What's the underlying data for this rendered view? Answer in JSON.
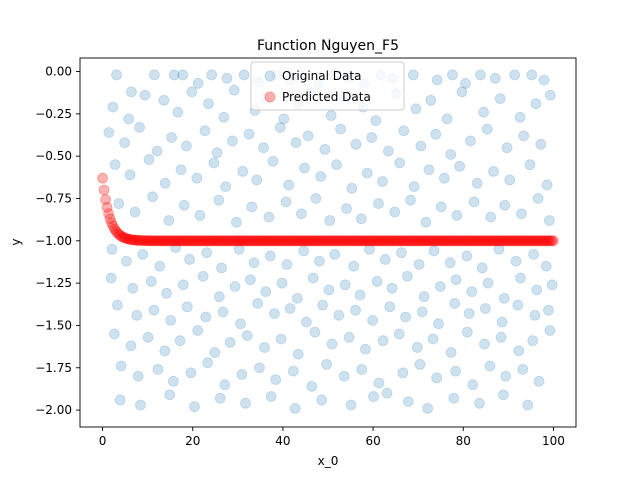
{
  "chart_data": {
    "type": "scatter",
    "title": "Function Nguyen_F5",
    "xlabel": "x_0",
    "ylabel": "y",
    "xlim": [
      -5,
      105
    ],
    "ylim": [
      -2.1,
      0.08
    ],
    "xticks": [
      0,
      20,
      40,
      60,
      80,
      100
    ],
    "xtick_labels": [
      "0",
      "20",
      "40",
      "60",
      "80",
      "100"
    ],
    "yticks": [
      0.0,
      -0.25,
      -0.5,
      -0.75,
      -1.0,
      -1.25,
      -1.5,
      -1.75,
      -2.0
    ],
    "ytick_labels": [
      "0.00",
      "−0.25",
      "−0.50",
      "−0.75",
      "−1.00",
      "−1.25",
      "−1.50",
      "−1.75",
      "−2.00"
    ],
    "grid": false,
    "legend_position": "top-center",
    "series": [
      {
        "name": "Original Data",
        "color": "#1f77b4",
        "alpha": 0.22,
        "points": [
          [
            3.1,
            -0.02
          ],
          [
            6.4,
            -0.12
          ],
          [
            11.5,
            -0.02
          ],
          [
            15.9,
            -0.02
          ],
          [
            17.8,
            -0.02
          ],
          [
            21.2,
            -0.07
          ],
          [
            24.2,
            -0.02
          ],
          [
            27.6,
            -0.04
          ],
          [
            31.4,
            -0.02
          ],
          [
            34.6,
            -0.06
          ],
          [
            38.7,
            -0.02
          ],
          [
            41.8,
            -0.05
          ],
          [
            44.3,
            -0.02
          ],
          [
            47.9,
            -0.07
          ],
          [
            51.2,
            -0.02
          ],
          [
            54.6,
            -0.04
          ],
          [
            58.1,
            -0.07
          ],
          [
            61.7,
            -0.02
          ],
          [
            64.3,
            -0.04
          ],
          [
            68.9,
            -0.02
          ],
          [
            74.2,
            -0.05
          ],
          [
            77.6,
            -0.02
          ],
          [
            80.5,
            -0.07
          ],
          [
            83.8,
            -0.02
          ],
          [
            87.1,
            -0.04
          ],
          [
            91.4,
            -0.02
          ],
          [
            95.2,
            -0.02
          ],
          [
            97.9,
            -0.05
          ],
          [
            2.3,
            -0.21
          ],
          [
            5.8,
            -0.28
          ],
          [
            9.4,
            -0.14
          ],
          [
            13.6,
            -0.17
          ],
          [
            16.7,
            -0.24
          ],
          [
            19.8,
            -0.12
          ],
          [
            23.5,
            -0.19
          ],
          [
            26.9,
            -0.27
          ],
          [
            29.2,
            -0.11
          ],
          [
            33.8,
            -0.23
          ],
          [
            36.4,
            -0.16
          ],
          [
            40.2,
            -0.28
          ],
          [
            43.5,
            -0.19
          ],
          [
            46.1,
            -0.12
          ],
          [
            50.7,
            -0.26
          ],
          [
            53.4,
            -0.15
          ],
          [
            57.8,
            -0.21
          ],
          [
            60.6,
            -0.29
          ],
          [
            65.2,
            -0.13
          ],
          [
            69.5,
            -0.22
          ],
          [
            72.8,
            -0.17
          ],
          [
            76.4,
            -0.28
          ],
          [
            79.7,
            -0.12
          ],
          [
            84.5,
            -0.24
          ],
          [
            88.2,
            -0.16
          ],
          [
            92.6,
            -0.27
          ],
          [
            96.1,
            -0.19
          ],
          [
            99.3,
            -0.14
          ],
          [
            1.4,
            -0.36
          ],
          [
            4.9,
            -0.42
          ],
          [
            8.2,
            -0.33
          ],
          [
            12.1,
            -0.47
          ],
          [
            15.3,
            -0.39
          ],
          [
            18.6,
            -0.44
          ],
          [
            22.7,
            -0.35
          ],
          [
            25.4,
            -0.48
          ],
          [
            28.8,
            -0.41
          ],
          [
            32.5,
            -0.37
          ],
          [
            35.7,
            -0.45
          ],
          [
            39.4,
            -0.33
          ],
          [
            42.9,
            -0.42
          ],
          [
            45.6,
            -0.38
          ],
          [
            49.3,
            -0.46
          ],
          [
            52.8,
            -0.34
          ],
          [
            56.2,
            -0.43
          ],
          [
            59.7,
            -0.39
          ],
          [
            63.4,
            -0.47
          ],
          [
            66.8,
            -0.35
          ],
          [
            70.6,
            -0.44
          ],
          [
            73.9,
            -0.37
          ],
          [
            77.2,
            -0.49
          ],
          [
            81.6,
            -0.41
          ],
          [
            85.3,
            -0.34
          ],
          [
            89.7,
            -0.45
          ],
          [
            93.4,
            -0.38
          ],
          [
            97.2,
            -0.43
          ],
          [
            2.8,
            -0.55
          ],
          [
            6.1,
            -0.61
          ],
          [
            10.3,
            -0.52
          ],
          [
            13.9,
            -0.66
          ],
          [
            17.4,
            -0.58
          ],
          [
            20.9,
            -0.63
          ],
          [
            24.7,
            -0.54
          ],
          [
            27.3,
            -0.68
          ],
          [
            31.1,
            -0.59
          ],
          [
            34.2,
            -0.64
          ],
          [
            37.8,
            -0.53
          ],
          [
            41.3,
            -0.67
          ],
          [
            44.8,
            -0.57
          ],
          [
            48.4,
            -0.62
          ],
          [
            51.9,
            -0.55
          ],
          [
            55.3,
            -0.69
          ],
          [
            58.7,
            -0.6
          ],
          [
            62.1,
            -0.65
          ],
          [
            65.9,
            -0.54
          ],
          [
            69.1,
            -0.68
          ],
          [
            72.4,
            -0.58
          ],
          [
            75.8,
            -0.63
          ],
          [
            79.2,
            -0.56
          ],
          [
            83.1,
            -0.66
          ],
          [
            86.7,
            -0.59
          ],
          [
            90.3,
            -0.64
          ],
          [
            94.8,
            -0.55
          ],
          [
            98.6,
            -0.67
          ],
          [
            3.6,
            -0.78
          ],
          [
            7.2,
            -0.83
          ],
          [
            11.1,
            -0.74
          ],
          [
            14.7,
            -0.88
          ],
          [
            18.1,
            -0.79
          ],
          [
            21.6,
            -0.85
          ],
          [
            25.8,
            -0.76
          ],
          [
            29.7,
            -0.89
          ],
          [
            33.1,
            -0.8
          ],
          [
            36.9,
            -0.86
          ],
          [
            40.7,
            -0.77
          ],
          [
            44.1,
            -0.84
          ],
          [
            47.3,
            -0.75
          ],
          [
            50.4,
            -0.88
          ],
          [
            54.1,
            -0.81
          ],
          [
            57.4,
            -0.87
          ],
          [
            61.2,
            -0.78
          ],
          [
            64.8,
            -0.83
          ],
          [
            68.3,
            -0.76
          ],
          [
            71.7,
            -0.89
          ],
          [
            75.1,
            -0.8
          ],
          [
            78.6,
            -0.85
          ],
          [
            82.4,
            -0.77
          ],
          [
            86.1,
            -0.86
          ],
          [
            89.2,
            -0.79
          ],
          [
            92.9,
            -0.84
          ],
          [
            96.6,
            -0.75
          ],
          [
            99.1,
            -0.88
          ],
          [
            2.1,
            -1.05
          ],
          [
            5.3,
            -1.12
          ],
          [
            8.9,
            -1.08
          ],
          [
            12.7,
            -1.15
          ],
          [
            16.2,
            -1.04
          ],
          [
            19.3,
            -1.11
          ],
          [
            23.1,
            -1.07
          ],
          [
            26.4,
            -1.16
          ],
          [
            30.3,
            -1.05
          ],
          [
            33.6,
            -1.13
          ],
          [
            37.2,
            -1.09
          ],
          [
            40.9,
            -1.14
          ],
          [
            44.6,
            -1.06
          ],
          [
            48.1,
            -1.12
          ],
          [
            51.5,
            -1.08
          ],
          [
            55.7,
            -1.15
          ],
          [
            59.2,
            -1.05
          ],
          [
            62.7,
            -1.11
          ],
          [
            66.3,
            -1.07
          ],
          [
            70.2,
            -1.14
          ],
          [
            73.5,
            -1.06
          ],
          [
            77.1,
            -1.13
          ],
          [
            80.8,
            -1.09
          ],
          [
            84.2,
            -1.16
          ],
          [
            87.9,
            -1.05
          ],
          [
            91.7,
            -1.12
          ],
          [
            95.6,
            -1.08
          ],
          [
            98.4,
            -1.15
          ],
          [
            1.9,
            -1.22
          ],
          [
            6.7,
            -1.28
          ],
          [
            10.8,
            -1.24
          ],
          [
            14.2,
            -1.31
          ],
          [
            17.9,
            -1.26
          ],
          [
            22.3,
            -1.21
          ],
          [
            25.9,
            -1.33
          ],
          [
            29.4,
            -1.27
          ],
          [
            32.8,
            -1.23
          ],
          [
            36.2,
            -1.3
          ],
          [
            39.8,
            -1.25
          ],
          [
            43.2,
            -1.34
          ],
          [
            46.7,
            -1.22
          ],
          [
            50.2,
            -1.29
          ],
          [
            53.8,
            -1.26
          ],
          [
            57.1,
            -1.32
          ],
          [
            60.9,
            -1.24
          ],
          [
            64.2,
            -1.28
          ],
          [
            67.6,
            -1.21
          ],
          [
            71.3,
            -1.33
          ],
          [
            74.9,
            -1.27
          ],
          [
            78.4,
            -1.23
          ],
          [
            81.9,
            -1.3
          ],
          [
            85.5,
            -1.25
          ],
          [
            89.1,
            -1.34
          ],
          [
            92.7,
            -1.22
          ],
          [
            96.3,
            -1.29
          ],
          [
            99.7,
            -1.26
          ],
          [
            3.3,
            -1.38
          ],
          [
            7.6,
            -1.44
          ],
          [
            11.4,
            -1.41
          ],
          [
            15.1,
            -1.47
          ],
          [
            18.8,
            -1.39
          ],
          [
            22.9,
            -1.45
          ],
          [
            26.7,
            -1.42
          ],
          [
            30.6,
            -1.49
          ],
          [
            34.4,
            -1.37
          ],
          [
            38.1,
            -1.43
          ],
          [
            41.6,
            -1.4
          ],
          [
            45.2,
            -1.48
          ],
          [
            48.8,
            -1.38
          ],
          [
            52.4,
            -1.44
          ],
          [
            56.1,
            -1.41
          ],
          [
            59.9,
            -1.47
          ],
          [
            63.7,
            -1.39
          ],
          [
            67.2,
            -1.45
          ],
          [
            70.9,
            -1.42
          ],
          [
            74.5,
            -1.49
          ],
          [
            78.1,
            -1.37
          ],
          [
            81.3,
            -1.43
          ],
          [
            84.9,
            -1.4
          ],
          [
            88.6,
            -1.48
          ],
          [
            92.1,
            -1.38
          ],
          [
            95.9,
            -1.44
          ],
          [
            98.9,
            -1.41
          ],
          [
            2.6,
            -1.55
          ],
          [
            6.3,
            -1.62
          ],
          [
            10.1,
            -1.57
          ],
          [
            13.8,
            -1.65
          ],
          [
            17.2,
            -1.59
          ],
          [
            21.1,
            -1.53
          ],
          [
            24.9,
            -1.66
          ],
          [
            28.3,
            -1.6
          ],
          [
            32.1,
            -1.56
          ],
          [
            35.9,
            -1.63
          ],
          [
            39.6,
            -1.58
          ],
          [
            43.4,
            -1.67
          ],
          [
            47.1,
            -1.54
          ],
          [
            50.9,
            -1.61
          ],
          [
            54.7,
            -1.57
          ],
          [
            58.3,
            -1.64
          ],
          [
            62.2,
            -1.59
          ],
          [
            65.8,
            -1.55
          ],
          [
            69.8,
            -1.63
          ],
          [
            73.3,
            -1.58
          ],
          [
            77.3,
            -1.66
          ],
          [
            80.9,
            -1.54
          ],
          [
            84.7,
            -1.61
          ],
          [
            88.4,
            -1.57
          ],
          [
            92.3,
            -1.65
          ],
          [
            95.4,
            -1.59
          ],
          [
            99.2,
            -1.53
          ],
          [
            4.1,
            -1.74
          ],
          [
            7.9,
            -1.8
          ],
          [
            12.3,
            -1.76
          ],
          [
            15.7,
            -1.83
          ],
          [
            19.6,
            -1.78
          ],
          [
            23.3,
            -1.72
          ],
          [
            27.1,
            -1.85
          ],
          [
            30.9,
            -1.79
          ],
          [
            34.8,
            -1.75
          ],
          [
            38.4,
            -1.82
          ],
          [
            42.3,
            -1.77
          ],
          [
            46.4,
            -1.86
          ],
          [
            49.7,
            -1.73
          ],
          [
            53.6,
            -1.8
          ],
          [
            57.5,
            -1.76
          ],
          [
            61.3,
            -1.84
          ],
          [
            63.1,
            -1.9
          ],
          [
            66.6,
            -1.78
          ],
          [
            70.4,
            -1.73
          ],
          [
            74.1,
            -1.81
          ],
          [
            78.3,
            -1.77
          ],
          [
            82.1,
            -1.85
          ],
          [
            85.9,
            -1.74
          ],
          [
            89.4,
            -1.8
          ],
          [
            93.2,
            -1.76
          ],
          [
            96.8,
            -1.83
          ],
          [
            3.9,
            -1.94
          ],
          [
            8.4,
            -1.97
          ],
          [
            14.9,
            -1.91
          ],
          [
            20.4,
            -1.98
          ],
          [
            26.1,
            -1.93
          ],
          [
            31.7,
            -1.96
          ],
          [
            37.4,
            -1.92
          ],
          [
            42.7,
            -1.99
          ],
          [
            48.6,
            -1.94
          ],
          [
            55.1,
            -1.97
          ],
          [
            60.1,
            -1.92
          ],
          [
            67.8,
            -1.95
          ],
          [
            72.1,
            -1.99
          ],
          [
            77.9,
            -1.93
          ],
          [
            83.6,
            -1.96
          ],
          [
            88.9,
            -1.91
          ],
          [
            94.3,
            -1.97
          ]
        ]
      },
      {
        "name": "Predicted Data",
        "color": "#ff0000",
        "alpha": 0.3,
        "function": "-1 + 0.37*exp(-x/1.6)",
        "x_range": [
          0,
          100
        ],
        "n_points": 300
      }
    ]
  }
}
